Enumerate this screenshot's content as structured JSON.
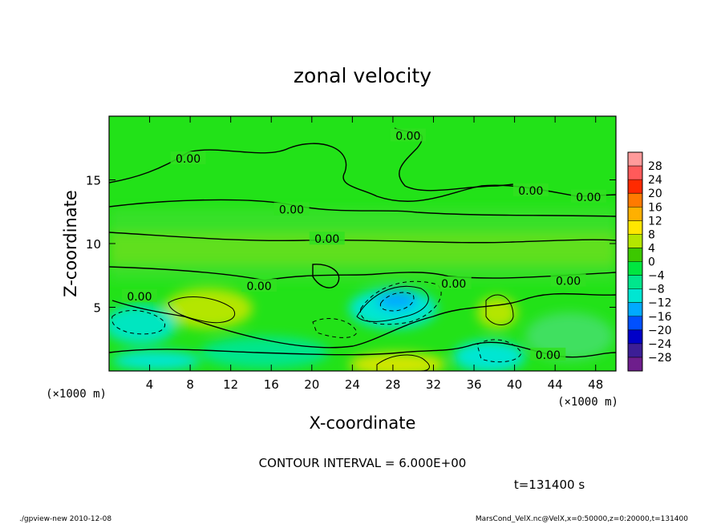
{
  "chart_data": {
    "type": "heatmap",
    "title": "zonal velocity",
    "xlabel": "X-coordinate",
    "ylabel": "Z-coordinate",
    "x_unit": "(×1000 m)",
    "y_unit": "(×1000 m)",
    "xlim": [
      0,
      50
    ],
    "ylim": [
      0,
      20
    ],
    "x_ticks": [
      4,
      8,
      12,
      16,
      20,
      24,
      28,
      32,
      36,
      40,
      44,
      48
    ],
    "y_ticks": [
      5,
      10,
      15
    ],
    "colorbar": {
      "labels": [
        28,
        24,
        20,
        16,
        12,
        8,
        4,
        0,
        -4,
        -8,
        -12,
        -16,
        -20,
        -24,
        -28
      ],
      "display_labels": [
        "28",
        "24",
        "20",
        "16",
        "12",
        "8",
        "4",
        "0",
        "−4",
        "−8",
        "−12",
        "−16",
        "−20",
        "−24",
        "−28"
      ],
      "colors": [
        "#ff9a9a",
        "#ff5a5a",
        "#ff2a00",
        "#ff7a00",
        "#ffb000",
        "#ffe600",
        "#b4e600",
        "#3cc800",
        "#00e640",
        "#00e68c",
        "#00e6d2",
        "#00aaff",
        "#0050ff",
        "#0000c8",
        "#3c1e96",
        "#6e1e8c"
      ]
    },
    "contour_labels": [
      {
        "text": "0.00",
        "x": 7.8,
        "z": 16.6
      },
      {
        "text": "0.00",
        "x": 18.0,
        "z": 12.6
      },
      {
        "text": "0.00",
        "x": 21.5,
        "z": 10.3
      },
      {
        "text": "0.00",
        "x": 14.8,
        "z": 6.6
      },
      {
        "text": "0.00",
        "x": 3.0,
        "z": 5.8
      },
      {
        "text": "0.00",
        "x": 29.5,
        "z": 18.4
      },
      {
        "text": "0.00",
        "x": 41.6,
        "z": 14.1
      },
      {
        "text": "0.00",
        "x": 47.3,
        "z": 13.6
      },
      {
        "text": "0.00",
        "x": 34.0,
        "z": 6.8
      },
      {
        "text": "0.00",
        "x": 45.3,
        "z": 7.0
      },
      {
        "text": "0.00",
        "x": 43.3,
        "z": 1.2
      }
    ],
    "features": [
      {
        "x": 28.5,
        "z": 5.5,
        "value": -10
      },
      {
        "x": 8.0,
        "z": 5.0,
        "value": 6
      },
      {
        "x": 28.0,
        "z": 0.8,
        "value": 8
      },
      {
        "x": 37.0,
        "z": 5.5,
        "value": 6
      },
      {
        "x": 3.0,
        "z": 4.0,
        "value": -8
      },
      {
        "x": 38.0,
        "z": 1.0,
        "value": -10
      }
    ]
  },
  "contour_interval_text": "CONTOUR INTERVAL = 6.000E+00",
  "time_text": "t=131400 s",
  "footer_left": "./gpview-new  2010-12-08",
  "footer_right": "MarsCond_VelX.nc@VelX,x=0:50000,z=0:20000,t=131400"
}
